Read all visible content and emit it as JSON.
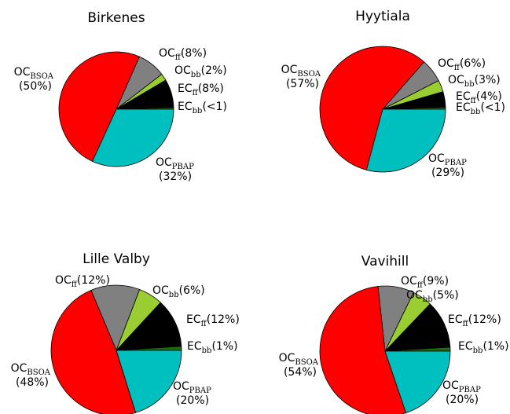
{
  "chart_data": [
    {
      "type": "pie",
      "title": "Birkenes",
      "categories": [
        {
          "name": "EC",
          "sub": "bb"
        },
        {
          "name": "EC",
          "sub": "ff"
        },
        {
          "name": "OC",
          "sub": "bb"
        },
        {
          "name": "OC",
          "sub": "ff"
        },
        {
          "name": "OC",
          "sub": "BSOA"
        },
        {
          "name": "OC",
          "sub": "PBAP"
        }
      ],
      "values": [
        0.5,
        8,
        2,
        8,
        50,
        32
      ],
      "value_labels": [
        "(<1)",
        "(8%)",
        "(2%)",
        "(8%)",
        "(50%)",
        "(32%)"
      ],
      "colors": [
        "#1f6b0f",
        "#000000",
        "#9acd32",
        "#808080",
        "#ff0000",
        "#00bfbf"
      ]
    },
    {
      "type": "pie",
      "title": "Hyytiala",
      "categories": [
        {
          "name": "EC",
          "sub": "bb"
        },
        {
          "name": "EC",
          "sub": "ff"
        },
        {
          "name": "OC",
          "sub": "bb"
        },
        {
          "name": "OC",
          "sub": "ff"
        },
        {
          "name": "OC",
          "sub": "BSOA"
        },
        {
          "name": "OC",
          "sub": "PBAP"
        }
      ],
      "values": [
        0.5,
        4,
        3,
        6,
        57,
        29
      ],
      "value_labels": [
        "(<1)",
        "(4%)",
        "(3%)",
        "(6%)",
        "(57%)",
        "(29%)"
      ],
      "colors": [
        "#1f6b0f",
        "#000000",
        "#9acd32",
        "#808080",
        "#ff0000",
        "#00bfbf"
      ]
    },
    {
      "type": "pie",
      "title": "Lille Valby",
      "categories": [
        {
          "name": "EC",
          "sub": "bb"
        },
        {
          "name": "EC",
          "sub": "ff"
        },
        {
          "name": "OC",
          "sub": "bb"
        },
        {
          "name": "OC",
          "sub": "ff"
        },
        {
          "name": "OC",
          "sub": "BSOA"
        },
        {
          "name": "OC",
          "sub": "PBAP"
        }
      ],
      "values": [
        1,
        12,
        6,
        12,
        48,
        20
      ],
      "value_labels": [
        "(1%)",
        "(12%)",
        "(6%)",
        "(12%)",
        "(48%)",
        "(20%)"
      ],
      "colors": [
        "#1f6b0f",
        "#000000",
        "#9acd32",
        "#808080",
        "#ff0000",
        "#00bfbf"
      ]
    },
    {
      "type": "pie",
      "title": "Vavihill",
      "categories": [
        {
          "name": "EC",
          "sub": "bb"
        },
        {
          "name": "EC",
          "sub": "ff"
        },
        {
          "name": "OC",
          "sub": "bb"
        },
        {
          "name": "OC",
          "sub": "ff"
        },
        {
          "name": "OC",
          "sub": "BSOA"
        },
        {
          "name": "OC",
          "sub": "PBAP"
        }
      ],
      "values": [
        1,
        12,
        5,
        9,
        54,
        20
      ],
      "value_labels": [
        "(1%)",
        "(12%)",
        "(5%)",
        "(9%)",
        "(54%)",
        "(20%)"
      ],
      "colors": [
        "#1f6b0f",
        "#000000",
        "#9acd32",
        "#808080",
        "#ff0000",
        "#00bfbf"
      ]
    }
  ]
}
